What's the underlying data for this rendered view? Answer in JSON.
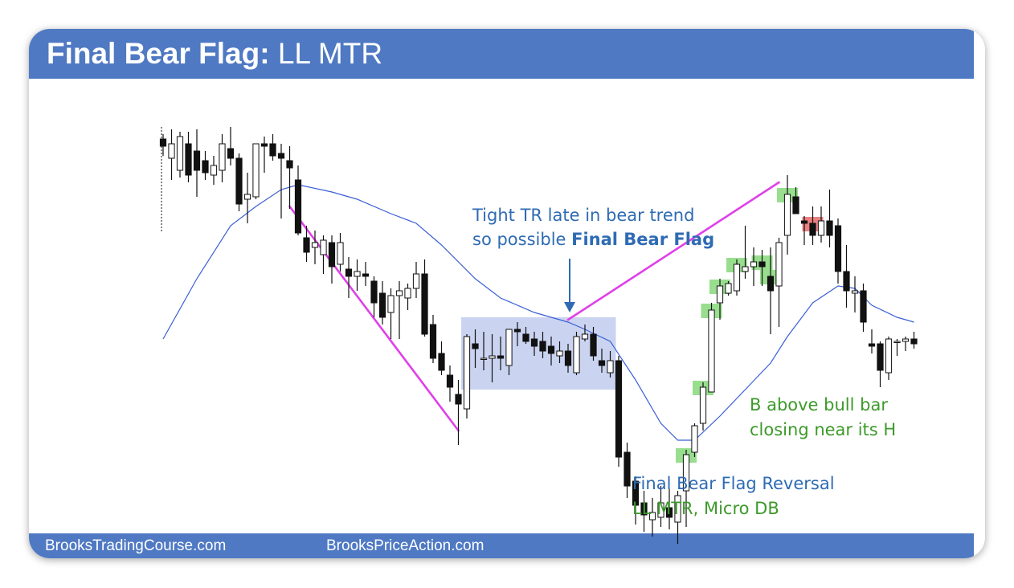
{
  "header": {
    "title_bold": "Final Bear Flag:",
    "title_rest": " LL MTR"
  },
  "footer": {
    "link_left": "BrooksTradingCourse.com",
    "link_right": "BrooksPriceAction.com"
  },
  "colors": {
    "header_bg": "#4f79c3",
    "ema_line": "#3b5fd6",
    "trendline": "#e040e8",
    "range_box": "#b8c6ec",
    "buy_highlight": "#86d87a",
    "sell_highlight": "#e86a6a",
    "annotation_blue": "#2e6bb3",
    "annotation_green": "#3d9a2a"
  },
  "chart_data": {
    "type": "candlestick",
    "title": "",
    "xlabel": "",
    "ylabel": "",
    "axes_shown": false,
    "grid": false,
    "series": [
      {
        "values": [
          {
            "o": 0.88,
            "h": 0.9,
            "l": 0.81,
            "c": 0.85
          },
          {
            "o": 0.8,
            "h": 0.92,
            "l": 0.71,
            "c": 0.86
          },
          {
            "o": 0.75,
            "h": 0.91,
            "l": 0.72,
            "c": 0.89
          },
          {
            "o": 0.86,
            "h": 0.91,
            "l": 0.7,
            "c": 0.73
          },
          {
            "o": 0.83,
            "h": 0.92,
            "l": 0.64,
            "c": 0.75
          },
          {
            "o": 0.79,
            "h": 0.83,
            "l": 0.71,
            "c": 0.74
          },
          {
            "o": 0.73,
            "h": 0.81,
            "l": 0.69,
            "c": 0.77
          },
          {
            "o": 0.75,
            "h": 0.9,
            "l": 0.7,
            "c": 0.86
          },
          {
            "o": 0.84,
            "h": 0.93,
            "l": 0.77,
            "c": 0.8
          },
          {
            "o": 0.8,
            "h": 0.82,
            "l": 0.58,
            "c": 0.61
          },
          {
            "o": 0.63,
            "h": 0.74,
            "l": 0.53,
            "c": 0.65
          },
          {
            "o": 0.64,
            "h": 0.86,
            "l": 0.63,
            "c": 0.86
          },
          {
            "o": 0.86,
            "h": 0.89,
            "l": 0.74,
            "c": 0.85
          },
          {
            "o": 0.86,
            "h": 0.9,
            "l": 0.79,
            "c": 0.81
          },
          {
            "o": 0.82,
            "h": 0.86,
            "l": 0.55,
            "c": 0.8
          },
          {
            "o": 0.79,
            "h": 0.85,
            "l": 0.59,
            "c": 0.76
          },
          {
            "o": 0.71,
            "h": 0.77,
            "l": 0.48,
            "c": 0.49
          },
          {
            "o": 0.47,
            "h": 0.52,
            "l": 0.37,
            "c": 0.41
          },
          {
            "o": 0.43,
            "h": 0.5,
            "l": 0.36,
            "c": 0.45
          },
          {
            "o": 0.4,
            "h": 0.48,
            "l": 0.32,
            "c": 0.46
          },
          {
            "o": 0.45,
            "h": 0.48,
            "l": 0.28,
            "c": 0.35
          },
          {
            "o": 0.36,
            "h": 0.49,
            "l": 0.33,
            "c": 0.45
          },
          {
            "o": 0.34,
            "h": 0.39,
            "l": 0.22,
            "c": 0.31
          },
          {
            "o": 0.31,
            "h": 0.38,
            "l": 0.25,
            "c": 0.33
          },
          {
            "o": 0.32,
            "h": 0.37,
            "l": 0.27,
            "c": 0.31
          },
          {
            "o": 0.29,
            "h": 0.31,
            "l": 0.14,
            "c": 0.2
          },
          {
            "o": 0.24,
            "h": 0.29,
            "l": 0.11,
            "c": 0.14
          },
          {
            "o": 0.16,
            "h": 0.26,
            "l": 0.05,
            "c": 0.23
          },
          {
            "o": 0.23,
            "h": 0.29,
            "l": 0.05,
            "c": 0.25
          },
          {
            "o": 0.22,
            "h": 0.28,
            "l": 0.17,
            "c": 0.26
          },
          {
            "o": 0.26,
            "h": 0.37,
            "l": 0.22,
            "c": 0.32
          },
          {
            "o": 0.32,
            "h": 0.38,
            "l": 0.06,
            "c": 0.07
          },
          {
            "o": 0.11,
            "h": 0.15,
            "l": -0.05,
            "c": -0.03
          },
          {
            "o": -0.01,
            "h": 0.04,
            "l": -0.1,
            "c": -0.08
          },
          {
            "o": -0.1,
            "h": -0.06,
            "l": -0.21,
            "c": -0.15
          },
          {
            "o": -0.18,
            "h": -0.12,
            "l": -0.39,
            "c": -0.22
          },
          {
            "o": -0.24,
            "h": 0.07,
            "l": -0.28,
            "c": 0.06
          },
          {
            "o": 0.03,
            "h": 0.09,
            "l": -0.07,
            "c": 0.01
          },
          {
            "o": -0.03,
            "h": 0.08,
            "l": -0.08,
            "c": -0.03
          },
          {
            "o": -0.03,
            "h": 0.07,
            "l": -0.13,
            "c": -0.02
          },
          {
            "o": -0.02,
            "h": 0.06,
            "l": -0.08,
            "c": -0.03
          },
          {
            "o": -0.06,
            "h": 0.09,
            "l": -0.1,
            "c": 0.09
          },
          {
            "o": 0.09,
            "h": 0.12,
            "l": 0.02,
            "c": 0.08
          },
          {
            "o": 0.07,
            "h": 0.1,
            "l": 0.03,
            "c": 0.04
          },
          {
            "o": 0.05,
            "h": 0.08,
            "l": -0.02,
            "c": 0.02
          },
          {
            "o": 0.04,
            "h": 0.08,
            "l": -0.03,
            "c": 0.0
          },
          {
            "o": 0.02,
            "h": 0.06,
            "l": -0.06,
            "c": -0.01
          },
          {
            "o": -0.02,
            "h": 0.04,
            "l": -0.05,
            "c": 0.0
          },
          {
            "o": 0.0,
            "h": 0.03,
            "l": -0.09,
            "c": -0.06
          },
          {
            "o": -0.09,
            "h": 0.08,
            "l": -0.1,
            "c": 0.06
          },
          {
            "o": 0.05,
            "h": 0.11,
            "l": 0.04,
            "c": 0.07
          },
          {
            "o": 0.07,
            "h": 0.1,
            "l": -0.04,
            "c": -0.02
          },
          {
            "o": -0.04,
            "h": 0.01,
            "l": -0.09,
            "c": -0.06
          },
          {
            "o": -0.09,
            "h": 0.0,
            "l": -0.11,
            "c": -0.04
          },
          {
            "o": -0.04,
            "h": -0.02,
            "l": -0.48,
            "c": -0.44
          },
          {
            "o": -0.42,
            "h": -0.38,
            "l": -0.61,
            "c": -0.56
          },
          {
            "o": -0.54,
            "h": -0.52,
            "l": -0.72,
            "c": -0.64
          },
          {
            "o": -0.63,
            "h": -0.58,
            "l": -0.75,
            "c": -0.68
          },
          {
            "o": -0.7,
            "h": -0.61,
            "l": -0.77,
            "c": -0.67
          },
          {
            "o": -0.69,
            "h": -0.56,
            "l": -0.73,
            "c": -0.63
          },
          {
            "o": -0.65,
            "h": -0.57,
            "l": -0.74,
            "c": -0.69
          },
          {
            "o": -0.71,
            "h": -0.58,
            "l": -0.8,
            "c": -0.6
          },
          {
            "o": -0.58,
            "h": -0.41,
            "l": -0.73,
            "c": -0.43
          },
          {
            "o": -0.42,
            "h": -0.3,
            "l": -0.44,
            "c": -0.31
          },
          {
            "o": -0.3,
            "h": -0.13,
            "l": -0.33,
            "c": -0.15
          },
          {
            "o": -0.17,
            "h": 0.2,
            "l": -0.17,
            "c": 0.17
          },
          {
            "o": 0.2,
            "h": 0.3,
            "l": 0.13,
            "c": 0.27
          },
          {
            "o": 0.24,
            "h": 0.29,
            "l": 0.23,
            "c": 0.28
          },
          {
            "o": 0.25,
            "h": 0.38,
            "l": 0.23,
            "c": 0.36
          },
          {
            "o": 0.33,
            "h": 0.52,
            "l": 0.3,
            "c": 0.35
          },
          {
            "o": 0.35,
            "h": 0.43,
            "l": 0.27,
            "c": 0.37
          },
          {
            "o": 0.37,
            "h": 0.42,
            "l": 0.27,
            "c": 0.35
          },
          {
            "o": 0.31,
            "h": 0.43,
            "l": 0.07,
            "c": 0.25
          },
          {
            "o": 0.27,
            "h": 0.47,
            "l": 0.1,
            "c": 0.45
          },
          {
            "o": 0.48,
            "h": 0.73,
            "l": 0.4,
            "c": 0.65
          },
          {
            "o": 0.64,
            "h": 0.68,
            "l": 0.57,
            "c": 0.57
          },
          {
            "o": 0.54,
            "h": 0.56,
            "l": 0.44,
            "c": 0.53
          },
          {
            "o": 0.53,
            "h": 0.6,
            "l": 0.44,
            "c": 0.48
          },
          {
            "o": 0.48,
            "h": 0.6,
            "l": 0.45,
            "c": 0.54
          },
          {
            "o": 0.54,
            "h": 0.67,
            "l": 0.43,
            "c": 0.48
          },
          {
            "o": 0.52,
            "h": 0.55,
            "l": 0.28,
            "c": 0.33
          },
          {
            "o": 0.33,
            "h": 0.44,
            "l": 0.18,
            "c": 0.25
          },
          {
            "o": 0.24,
            "h": 0.31,
            "l": 0.16,
            "c": 0.25
          },
          {
            "o": 0.25,
            "h": 0.28,
            "l": 0.08,
            "c": 0.12
          },
          {
            "o": 0.03,
            "h": 0.09,
            "l": -0.01,
            "c": 0.02
          },
          {
            "o": 0.03,
            "h": 0.04,
            "l": -0.15,
            "c": -0.08
          },
          {
            "o": -0.09,
            "h": 0.06,
            "l": -0.12,
            "c": 0.05
          },
          {
            "o": 0.04,
            "h": 0.05,
            "l": -0.02,
            "c": 0.04
          },
          {
            "o": 0.04,
            "h": 0.06,
            "l": 0.0,
            "c": 0.05
          },
          {
            "o": 0.05,
            "h": 0.08,
            "l": 0.01,
            "c": 0.03
          }
        ]
      },
      {
        "name": "",
        "type": "line",
        "values": [
          {
            "i": 0,
            "v": 0.05
          },
          {
            "i": 4,
            "v": 0.3
          },
          {
            "i": 8,
            "v": 0.52
          },
          {
            "i": 11,
            "v": 0.6
          },
          {
            "i": 14,
            "v": 0.67
          },
          {
            "i": 16,
            "v": 0.69
          },
          {
            "i": 20,
            "v": 0.66
          },
          {
            "i": 23,
            "v": 0.63
          },
          {
            "i": 27,
            "v": 0.57
          },
          {
            "i": 30,
            "v": 0.53
          },
          {
            "i": 33,
            "v": 0.44
          },
          {
            "i": 37,
            "v": 0.3
          },
          {
            "i": 40,
            "v": 0.22
          },
          {
            "i": 44,
            "v": 0.16
          },
          {
            "i": 48,
            "v": 0.12
          },
          {
            "i": 50,
            "v": 0.09
          },
          {
            "i": 53,
            "v": 0.04
          },
          {
            "i": 56,
            "v": -0.12
          },
          {
            "i": 59,
            "v": -0.3
          },
          {
            "i": 61,
            "v": -0.37
          },
          {
            "i": 63,
            "v": -0.37
          },
          {
            "i": 66,
            "v": -0.27
          },
          {
            "i": 69,
            "v": -0.16
          },
          {
            "i": 72,
            "v": -0.05
          },
          {
            "i": 74,
            "v": 0.06
          },
          {
            "i": 77,
            "v": 0.2
          },
          {
            "i": 80,
            "v": 0.27
          },
          {
            "i": 82,
            "v": 0.26
          },
          {
            "i": 84,
            "v": 0.19
          },
          {
            "i": 87,
            "v": 0.14
          },
          {
            "i": 89,
            "v": 0.12
          }
        ]
      }
    ],
    "annotations": [
      {
        "text_lines": [
          "Tight TR late in bear trend",
          "so possible "
        ],
        "emphasis": "Final Bear Flag"
      },
      {
        "text_lines": [
          "B above bull bar",
          "closing near its H"
        ]
      },
      {
        "text": "Final Bear Flag Reversal"
      },
      {
        "text": "LL MTR, Micro DB"
      }
    ],
    "trendlines": [
      {
        "from_bar": 15,
        "from_price": 0.6,
        "to_bar": 35,
        "to_price": -0.33
      },
      {
        "from_bar": 48,
        "from_price": 0.13,
        "to_bar": 73,
        "to_price": 0.7
      }
    ],
    "range_box": {
      "from_bar": 36,
      "to_bar": 53,
      "high": 0.14,
      "low": -0.16
    },
    "buy_highlights": [
      62,
      64,
      65,
      66,
      68,
      71,
      72,
      74
    ],
    "sell_highlights": [
      77
    ]
  }
}
